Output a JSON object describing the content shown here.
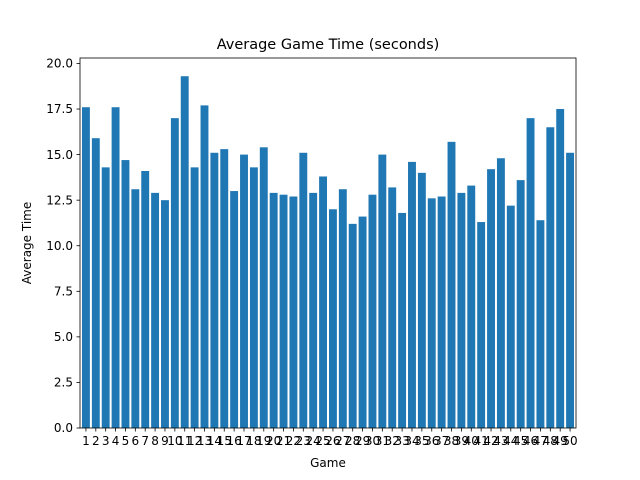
{
  "chart_data": {
    "type": "bar",
    "title": "Average Game Time (seconds)",
    "xlabel": "Game",
    "ylabel": "Average Time",
    "ylim": [
      0,
      20.3
    ],
    "yticks": [
      0.0,
      2.5,
      5.0,
      7.5,
      10.0,
      12.5,
      15.0,
      17.5,
      20.0
    ],
    "ytick_labels": [
      "0.0",
      "2.5",
      "5.0",
      "7.5",
      "10.0",
      "12.5",
      "15.0",
      "17.5",
      "20.0"
    ],
    "grid": false,
    "bar_color": "#1f77b4",
    "categories": [
      "1",
      "2",
      "3",
      "4",
      "5",
      "6",
      "7",
      "8",
      "9",
      "10",
      "11",
      "12",
      "13",
      "14",
      "15",
      "16",
      "17",
      "18",
      "19",
      "20",
      "21",
      "22",
      "23",
      "24",
      "25",
      "26",
      "27",
      "28",
      "29",
      "30",
      "31",
      "32",
      "33",
      "34",
      "35",
      "36",
      "37",
      "38",
      "39",
      "40",
      "41",
      "42",
      "43",
      "44",
      "45",
      "46",
      "47",
      "48",
      "49",
      "50"
    ],
    "values": [
      17.6,
      15.9,
      14.3,
      17.6,
      14.7,
      13.1,
      14.1,
      12.9,
      12.5,
      17.0,
      19.3,
      14.3,
      17.7,
      15.1,
      15.3,
      13.0,
      15.0,
      14.3,
      15.4,
      12.9,
      12.8,
      12.7,
      15.1,
      12.9,
      13.8,
      12.0,
      13.1,
      11.2,
      11.6,
      12.8,
      15.0,
      13.2,
      11.8,
      14.6,
      14.0,
      12.6,
      12.7,
      15.7,
      12.9,
      13.3,
      11.3,
      14.2,
      14.8,
      12.2,
      13.6,
      17.0,
      11.4,
      16.5,
      17.5,
      15.1
    ]
  }
}
